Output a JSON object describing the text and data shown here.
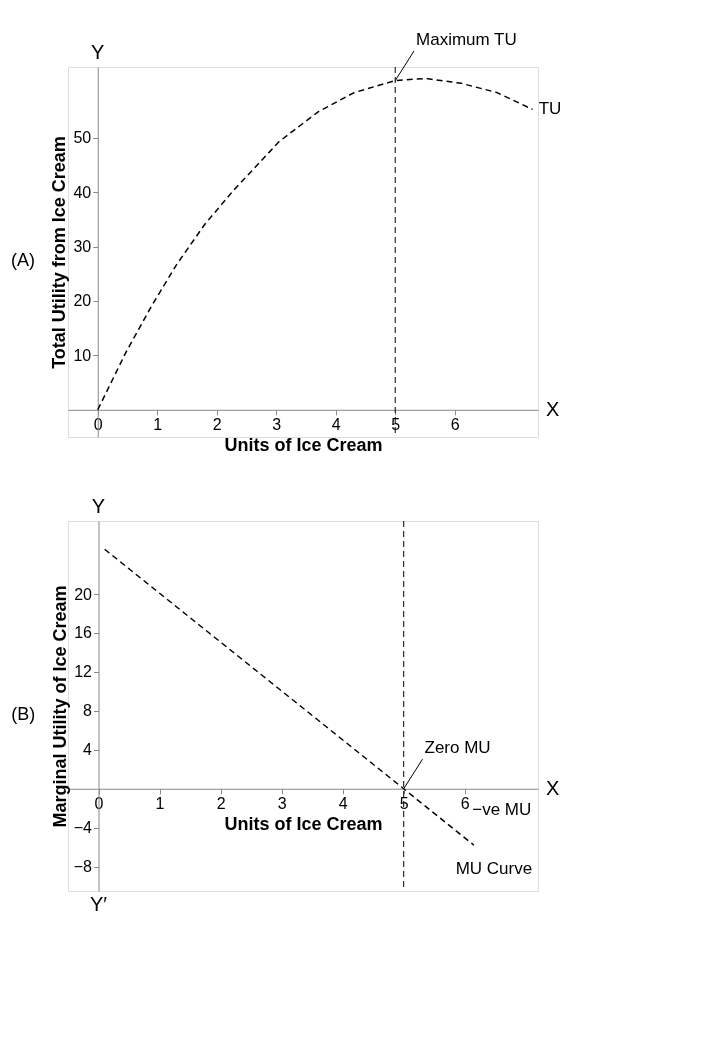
{
  "chart_data": [
    {
      "type": "line",
      "title": "(A)",
      "ylabel": "Total Utility from Ice Cream",
      "xlabel": "Units of Ice Cream",
      "x": [
        0,
        0.48,
        0.9,
        1.32,
        1.8,
        2.28,
        3.05,
        3.71,
        4.31,
        5.0,
        5.51,
        6.11,
        6.71,
        7.31
      ],
      "series": [
        {
          "name": "TU",
          "color": "#000000",
          "values": [
            0,
            10.7,
            19,
            26.6,
            34.1,
            40.3,
            49.3,
            54.8,
            58.3,
            60.5,
            60.9,
            60,
            58.3,
            55.2
          ]
        }
      ],
      "xlim": [
        -0.5,
        7.4
      ],
      "ylim": [
        -5,
        63
      ],
      "xticks": [
        0,
        1,
        2,
        3,
        4,
        5,
        6
      ],
      "yticks": [
        10,
        20,
        30,
        40,
        50
      ],
      "line_style": "dashed",
      "marker": "none",
      "grid": false,
      "ref_lines": [
        {
          "axis": "x",
          "value": 5,
          "line_style": "dashed",
          "color": "#000000"
        }
      ],
      "annotations": [
        {
          "text": "Maximum TU",
          "x": 5,
          "y": 60.5
        },
        "X",
        "Y"
      ]
    },
    {
      "type": "line",
      "title": "(B)",
      "ylabel": "Marginal Utility of Ice Cream",
      "xlabel": "Units of Ice Cream",
      "x": [
        0.1,
        5,
        6.15
      ],
      "series": [
        {
          "name": "MU Curve",
          "color": "#000000",
          "values": [
            24.6,
            0,
            -5.8
          ]
        }
      ],
      "xlim": [
        -0.5,
        7.2
      ],
      "ylim": [
        -10.5,
        27.5
      ],
      "xticks": [
        0,
        1,
        2,
        3,
        4,
        5,
        6
      ],
      "yticks": [
        -8,
        -4,
        4,
        8,
        12,
        16,
        20
      ],
      "line_style": "dashed",
      "marker": "none",
      "grid": false,
      "ref_lines": [
        {
          "axis": "x",
          "value": 5,
          "line_style": "dashed",
          "color": "#000000"
        }
      ],
      "annotations": [
        {
          "text": "Zero MU",
          "x": 5,
          "y": 0
        },
        "−ve MU",
        "X",
        "Y",
        "Y′"
      ]
    }
  ]
}
